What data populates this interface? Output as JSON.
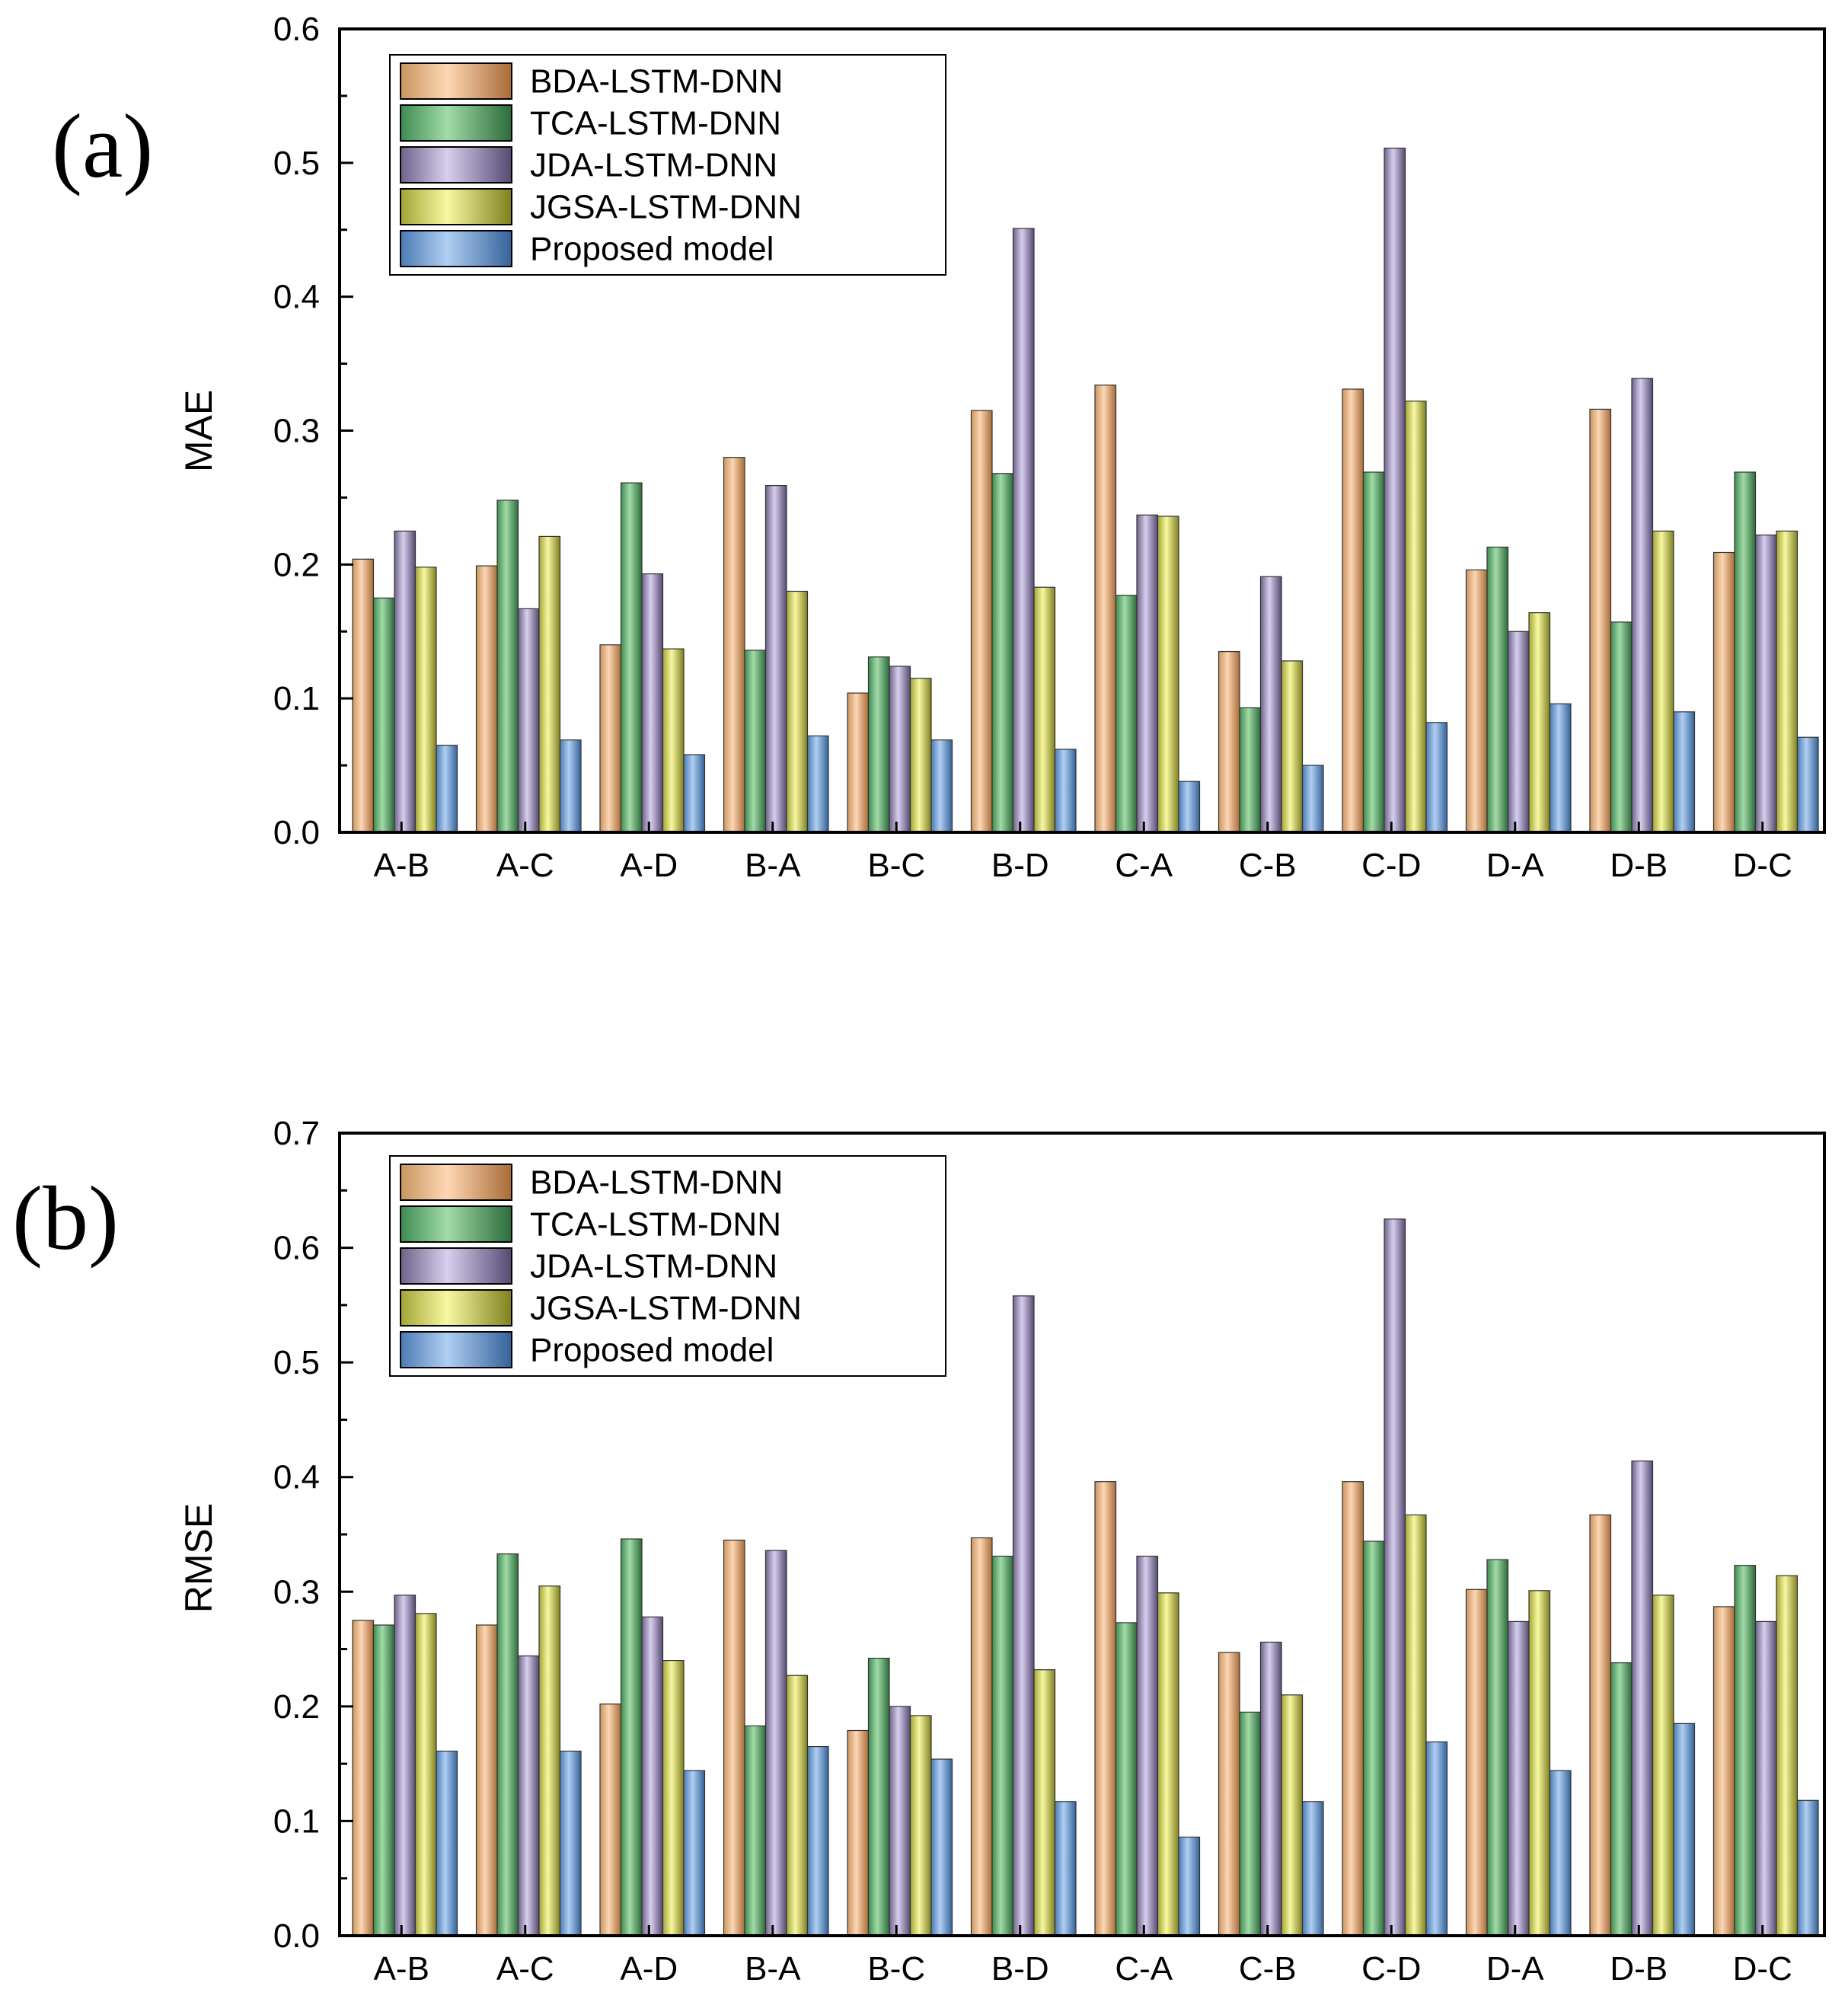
{
  "colors": {
    "BDA-LSTM-DNN": [
      "#c8955e",
      "#fdd7b5",
      "#a86c36"
    ],
    "TCA-LSTM-DNN": [
      "#3f8b52",
      "#a2dba8",
      "#2b6b3a"
    ],
    "JDA-LSTM-DNN": [
      "#6e6289",
      "#d8cfee",
      "#564a72"
    ],
    "JGSA-LSTM-DNN": [
      "#a3a436",
      "#f8f8a2",
      "#7f801f"
    ],
    "Proposed model": [
      "#4c7bb5",
      "#b0cff2",
      "#35629a"
    ],
    "axis": "#000000"
  },
  "chart_data": [
    {
      "type": "bar",
      "panel_label": "(a)",
      "title": "",
      "xlabel": "",
      "ylabel": "MAE",
      "ylim": [
        0,
        0.6
      ],
      "yticks": [
        "0.0",
        "0.1",
        "0.2",
        "0.3",
        "0.4",
        "0.5",
        "0.6"
      ],
      "categories": [
        "A-B",
        "A-C",
        "A-D",
        "B-A",
        "B-C",
        "B-D",
        "C-A",
        "C-B",
        "C-D",
        "D-A",
        "D-B",
        "D-C"
      ],
      "legend_position": "top-left",
      "series": [
        {
          "name": "BDA-LSTM-DNN",
          "values": [
            0.204,
            0.199,
            0.14,
            0.28,
            0.104,
            0.315,
            0.334,
            0.135,
            0.331,
            0.196,
            0.316,
            0.209
          ]
        },
        {
          "name": "TCA-LSTM-DNN",
          "values": [
            0.175,
            0.248,
            0.261,
            0.136,
            0.131,
            0.268,
            0.177,
            0.093,
            0.269,
            0.213,
            0.157,
            0.269
          ]
        },
        {
          "name": "JDA-LSTM-DNN",
          "values": [
            0.225,
            0.167,
            0.193,
            0.259,
            0.124,
            0.451,
            0.237,
            0.191,
            0.511,
            0.15,
            0.339,
            0.222
          ]
        },
        {
          "name": "JGSA-LSTM-DNN",
          "values": [
            0.198,
            0.221,
            0.137,
            0.18,
            0.115,
            0.183,
            0.236,
            0.128,
            0.322,
            0.164,
            0.225,
            0.225
          ]
        },
        {
          "name": "Proposed model",
          "values": [
            0.065,
            0.069,
            0.058,
            0.072,
            0.069,
            0.062,
            0.038,
            0.05,
            0.082,
            0.096,
            0.09,
            0.071
          ]
        }
      ]
    },
    {
      "type": "bar",
      "panel_label": "(b)",
      "title": "",
      "xlabel": "",
      "ylabel": "RMSE",
      "ylim": [
        0,
        0.7
      ],
      "yticks": [
        "0.0",
        "0.1",
        "0.2",
        "0.3",
        "0.4",
        "0.5",
        "0.6",
        "0.7"
      ],
      "categories": [
        "A-B",
        "A-C",
        "A-D",
        "B-A",
        "B-C",
        "B-D",
        "C-A",
        "C-B",
        "C-D",
        "D-A",
        "D-B",
        "D-C"
      ],
      "legend_position": "top-left",
      "series": [
        {
          "name": "BDA-LSTM-DNN",
          "values": [
            0.275,
            0.271,
            0.202,
            0.345,
            0.179,
            0.347,
            0.396,
            0.247,
            0.396,
            0.302,
            0.367,
            0.287
          ]
        },
        {
          "name": "TCA-LSTM-DNN",
          "values": [
            0.271,
            0.333,
            0.346,
            0.183,
            0.242,
            0.331,
            0.273,
            0.195,
            0.344,
            0.328,
            0.238,
            0.323
          ]
        },
        {
          "name": "JDA-LSTM-DNN",
          "values": [
            0.297,
            0.244,
            0.278,
            0.336,
            0.2,
            0.558,
            0.331,
            0.256,
            0.625,
            0.274,
            0.414,
            0.274
          ]
        },
        {
          "name": "JGSA-LSTM-DNN",
          "values": [
            0.281,
            0.305,
            0.24,
            0.227,
            0.192,
            0.232,
            0.299,
            0.21,
            0.367,
            0.301,
            0.297,
            0.314
          ]
        },
        {
          "name": "Proposed model",
          "values": [
            0.161,
            0.161,
            0.144,
            0.165,
            0.154,
            0.117,
            0.086,
            0.117,
            0.169,
            0.144,
            0.185,
            0.118
          ]
        }
      ]
    }
  ]
}
